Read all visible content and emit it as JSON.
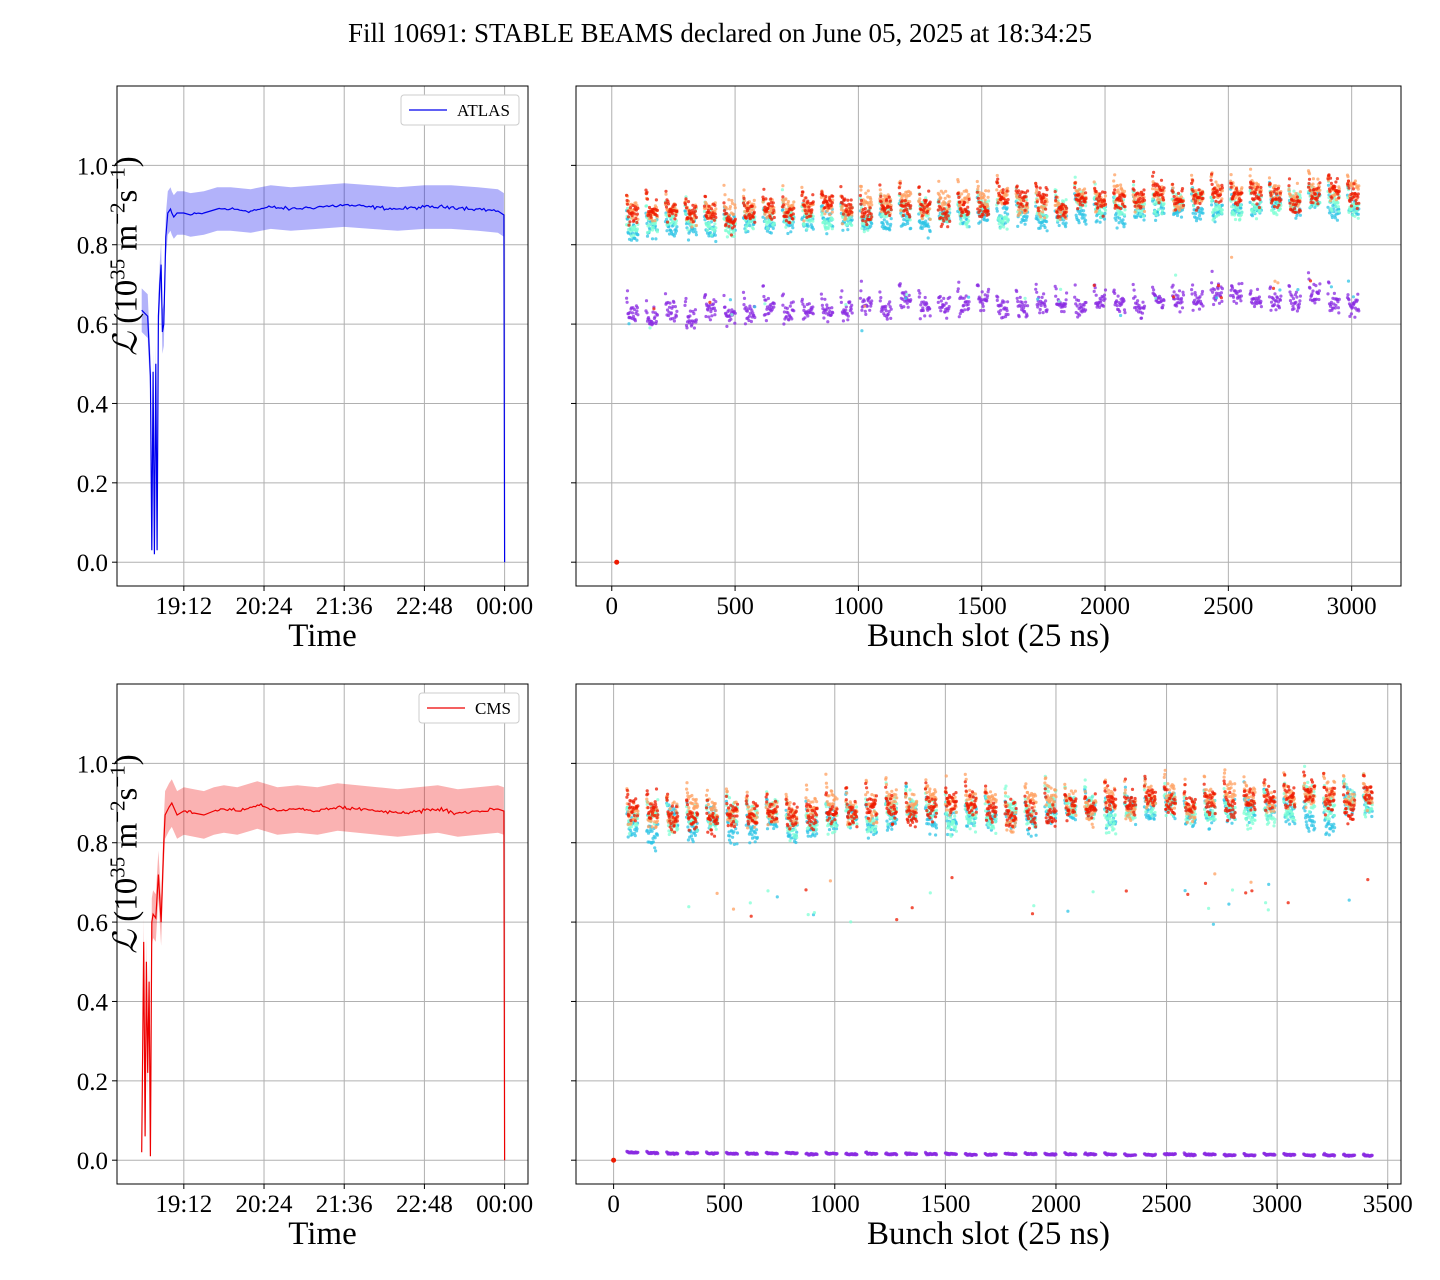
{
  "figure": {
    "title": "Fill 10691: STABLE BEAMS declared on June 05, 2025 at 18:34:25"
  },
  "chart_data": [
    {
      "id": "atlas-time",
      "type": "line",
      "xlabel": "Time",
      "ylabel": {
        "symbol": "ℒ",
        "text": "(10",
        "exp1": "35",
        "unit1": " m",
        "exp2": "−2",
        "unit2": "s",
        "exp3": "−1",
        "close": ")"
      },
      "x_ticks": [
        "19:12",
        "20:24",
        "21:36",
        "22:48",
        "00:00"
      ],
      "x_tick_hours": [
        19.2,
        20.4,
        21.6,
        22.8,
        24.0
      ],
      "xlim_hours": [
        18.2,
        24.35
      ],
      "y_ticks": [
        "0.0",
        "0.2",
        "0.4",
        "0.6",
        "0.8",
        "1.0"
      ],
      "ylim": [
        -0.06,
        1.2
      ],
      "grid": true,
      "legend": {
        "placement": "top-right",
        "entries": [
          "ATLAS"
        ]
      },
      "color": "#0000ee",
      "band_color": "#0000ee",
      "series": [
        {
          "name": "ATLAS",
          "x_hours": [
            18.57,
            18.66,
            18.7,
            18.72,
            18.74,
            18.76,
            18.78,
            18.8,
            18.82,
            18.84,
            18.86,
            18.88,
            18.9,
            18.93,
            18.96,
            19.0,
            19.02,
            19.05,
            19.1,
            19.2,
            19.3,
            19.5,
            19.6,
            19.7,
            19.9,
            20.2,
            20.5,
            20.8,
            21.2,
            21.6,
            22.0,
            22.4,
            22.8,
            23.2,
            23.6,
            23.9,
            23.99,
            24.0
          ],
          "y": [
            0.635,
            0.62,
            0.47,
            0.03,
            0.48,
            0.02,
            0.5,
            0.03,
            0.62,
            0.7,
            0.75,
            0.58,
            0.6,
            0.82,
            0.88,
            0.89,
            0.88,
            0.87,
            0.88,
            0.88,
            0.875,
            0.88,
            0.885,
            0.89,
            0.89,
            0.885,
            0.895,
            0.89,
            0.895,
            0.9,
            0.895,
            0.89,
            0.895,
            0.895,
            0.89,
            0.885,
            0.875,
            0.0
          ],
          "band_half_width": 0.055
        }
      ]
    },
    {
      "id": "atlas-bunch",
      "type": "scatter",
      "xlabel": "Bunch slot (25 ns)",
      "x_ticks": [
        0,
        500,
        1000,
        1500,
        2000,
        2500,
        3000
      ],
      "xlim": [
        -145,
        3200
      ],
      "ylim": [
        -0.06,
        1.2
      ],
      "y_ticks": [
        0.0,
        0.2,
        0.4,
        0.6,
        0.8,
        1.0
      ],
      "grid": true,
      "bunch_slot_max": 3030,
      "trains": {
        "start": 60,
        "period": 79,
        "width": 48
      },
      "series": [
        {
          "name": "",
          "color": "#8a2be2",
          "mean": 0.625,
          "spread": 0.04,
          "trend": 0.04
        },
        {
          "name": "",
          "color": "#2ec4e6",
          "mean": 0.84,
          "spread": 0.04,
          "trend": 0.06
        },
        {
          "name": "",
          "color": "#7fffd4",
          "mean": 0.85,
          "spread": 0.04,
          "trend": 0.06
        },
        {
          "name": "",
          "color": "#ffa060",
          "mean": 0.875,
          "spread": 0.04,
          "trend": 0.06
        },
        {
          "name": "",
          "color": "#ee1a00",
          "mean": 0.87,
          "spread": 0.04,
          "trend": 0.06
        }
      ],
      "outlier_point": {
        "x": 20,
        "y": 0.0,
        "color": "#ee1a00"
      }
    },
    {
      "id": "cms-time",
      "type": "line",
      "xlabel": "Time",
      "ylabel": {
        "symbol": "ℒ",
        "text": "(10",
        "exp1": "35",
        "unit1": " m",
        "exp2": "−2",
        "unit2": "s",
        "exp3": "−1",
        "close": ")"
      },
      "x_ticks": [
        "19:12",
        "20:24",
        "21:36",
        "22:48",
        "00:00"
      ],
      "x_tick_hours": [
        19.2,
        20.4,
        21.6,
        22.8,
        24.0
      ],
      "xlim_hours": [
        18.2,
        24.35
      ],
      "y_ticks": [
        "0.0",
        "0.2",
        "0.4",
        "0.6",
        "0.8",
        "1.0"
      ],
      "ylim": [
        -0.06,
        1.2
      ],
      "grid": true,
      "legend": {
        "placement": "top-right",
        "entries": [
          "CMS"
        ]
      },
      "color": "#ee0000",
      "band_color": "#ee0000",
      "series": [
        {
          "name": "CMS",
          "x_hours": [
            18.57,
            18.6,
            18.62,
            18.64,
            18.66,
            18.68,
            18.7,
            18.72,
            18.74,
            18.78,
            18.82,
            18.86,
            18.9,
            18.92,
            18.95,
            18.98,
            19.02,
            19.1,
            19.2,
            19.35,
            19.5,
            19.65,
            19.8,
            20.0,
            20.3,
            20.6,
            20.9,
            21.2,
            21.5,
            21.8,
            22.1,
            22.4,
            22.7,
            23.0,
            23.3,
            23.6,
            23.9,
            23.99,
            24.0
          ],
          "y": [
            0.02,
            0.55,
            0.06,
            0.5,
            0.22,
            0.45,
            0.01,
            0.6,
            0.62,
            0.61,
            0.72,
            0.6,
            0.8,
            0.87,
            0.88,
            0.89,
            0.9,
            0.87,
            0.88,
            0.875,
            0.87,
            0.88,
            0.885,
            0.88,
            0.895,
            0.88,
            0.885,
            0.88,
            0.89,
            0.885,
            0.88,
            0.875,
            0.88,
            0.885,
            0.875,
            0.88,
            0.885,
            0.88,
            0.0
          ],
          "band_half_width": 0.06
        }
      ]
    },
    {
      "id": "cms-bunch",
      "type": "scatter",
      "xlabel": "Bunch slot (25 ns)",
      "x_ticks": [
        0,
        500,
        1000,
        1500,
        2000,
        2500,
        3000,
        3500
      ],
      "xlim": [
        -170,
        3560
      ],
      "ylim": [
        -0.06,
        1.2
      ],
      "y_ticks": [
        0.0,
        0.2,
        0.4,
        0.6,
        0.8,
        1.0
      ],
      "grid": true,
      "bunch_slot_max": 3430,
      "trains": {
        "start": 60,
        "period": 90,
        "width": 52
      },
      "series": [
        {
          "name": "",
          "color": "#8a2be2",
          "mean": 0.018,
          "spread": 0.003,
          "trend": -0.006
        },
        {
          "name": "",
          "color": "#2ec4e6",
          "mean": 0.84,
          "spread": 0.05,
          "trend": 0.05
        },
        {
          "name": "",
          "color": "#7fffd4",
          "mean": 0.85,
          "spread": 0.05,
          "trend": 0.05
        },
        {
          "name": "",
          "color": "#ffa060",
          "mean": 0.87,
          "spread": 0.05,
          "trend": 0.05
        },
        {
          "name": "",
          "color": "#ee1a00",
          "mean": 0.865,
          "spread": 0.05,
          "trend": 0.05
        }
      ],
      "outlier_point": {
        "x": 0,
        "y": 0.0,
        "color": "#ee1a00"
      }
    }
  ]
}
